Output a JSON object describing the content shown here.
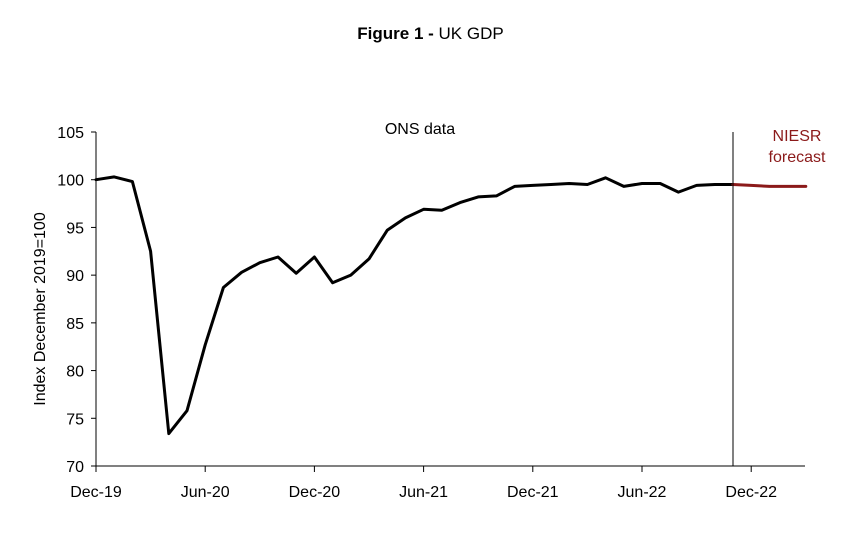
{
  "title_bold": "Figure 1 -",
  "title_rest": " UK GDP",
  "chart_data": {
    "type": "line",
    "title": "Figure 1 - UK GDP",
    "xlabel": "",
    "ylabel": "Index December 2019=100",
    "ylim": [
      70,
      105
    ],
    "y_ticks": [
      "70",
      "75",
      "80",
      "85",
      "90",
      "95",
      "100",
      "105"
    ],
    "x_ticks": [
      "Dec-19",
      "Jun-20",
      "Dec-20",
      "Jun-21",
      "Dec-21",
      "Jun-22",
      "Dec-22"
    ],
    "grid": false,
    "annotations": {
      "ons_label": "ONS data",
      "forecast_label_1": "NIESR",
      "forecast_label_2": "forecast",
      "forecast_start_month": 35
    },
    "series": [
      {
        "name": "ONS data",
        "color": "#000000",
        "x": [
          0,
          1,
          2,
          3,
          4,
          5,
          6,
          7,
          8,
          9,
          10,
          11,
          12,
          13,
          14,
          15,
          16,
          17,
          18,
          19,
          20,
          21,
          22,
          23,
          24,
          25,
          26,
          27,
          28,
          29,
          30,
          31,
          32,
          33,
          34,
          35
        ],
        "values": [
          100.0,
          100.3,
          99.8,
          92.5,
          73.4,
          75.8,
          82.7,
          88.7,
          90.3,
          91.3,
          91.9,
          90.2,
          91.9,
          89.2,
          90.0,
          91.7,
          94.7,
          96.0,
          96.9,
          96.8,
          97.6,
          98.2,
          98.3,
          99.3,
          99.4,
          99.5,
          99.6,
          99.5,
          100.2,
          99.3,
          99.6,
          99.6,
          98.7,
          99.4,
          99.5,
          99.5
        ]
      },
      {
        "name": "NIESR forecast",
        "color": "#8B1A1A",
        "x": [
          35,
          36,
          37,
          38,
          39
        ],
        "values": [
          99.5,
          99.4,
          99.3,
          99.3,
          99.3
        ]
      }
    ]
  }
}
